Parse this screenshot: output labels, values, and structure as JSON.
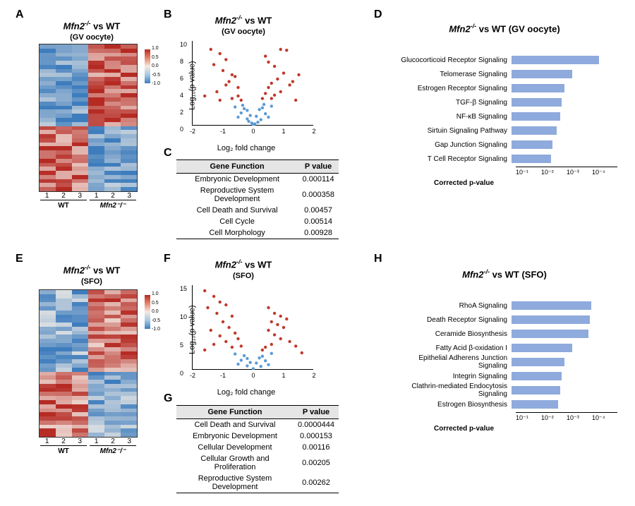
{
  "panels": {
    "A": {
      "label": "A",
      "title_html": "Mfn2",
      "sup": "-/-",
      "vs": " vs WT",
      "sub": "(GV oocyte)"
    },
    "B": {
      "label": "B",
      "title_html": "Mfn2",
      "sup": "-/-",
      "vs": " vs WT",
      "sub": "(GV oocyte)"
    },
    "C": {
      "label": "C"
    },
    "D": {
      "label": "D",
      "title_html": "Mfn2",
      "sup": "-/-",
      "vs": " vs WT (GV oocyte)"
    },
    "E": {
      "label": "E",
      "title_html": "Mfn2",
      "sup": "-/-",
      "vs": " vs WT",
      "sub": "(SFO)"
    },
    "F": {
      "label": "F",
      "title_html": "Mfn2",
      "sup": "-/-",
      "vs": " vs WT",
      "sub": "(SFO)"
    },
    "G": {
      "label": "G"
    },
    "H": {
      "label": "H",
      "title_html": "Mfn2",
      "sup": "-/-",
      "vs": " vs WT (SFO)"
    }
  },
  "heatmap": {
    "columns": [
      "1",
      "2",
      "3",
      "1",
      "2",
      "3"
    ],
    "groups": [
      "WT",
      "Mfn2⁻/⁻"
    ],
    "legend_ticks": [
      "1.0",
      "0.5",
      "0.0",
      "-0.5",
      "-1.0"
    ],
    "legend_gradient": [
      "#b52b24",
      "#e6836b",
      "#f6e8df",
      "#a6c9e2",
      "#3e7dbd"
    ],
    "low_color": "#3e7dbd",
    "mid_color": "#f5efe8",
    "high_color": "#b52b24",
    "rows": 36
  },
  "volcano": {
    "B": {
      "xlim": [
        -2,
        2
      ],
      "xticks": [
        -2,
        -1,
        0,
        1,
        2
      ],
      "ylim": [
        0,
        10
      ],
      "yticks": [
        0,
        2,
        4,
        6,
        8,
        10
      ],
      "xlabel": "Log₂ fold change",
      "ylabel": "-Log₁₀(p value)",
      "sig_color": "#c0392b",
      "nonsig_color": "#5b9bd5",
      "points_sig": [
        [
          -1.4,
          9
        ],
        [
          -1.1,
          8.5
        ],
        [
          -1.3,
          7.2
        ],
        [
          -0.9,
          7.8
        ],
        [
          -1.0,
          6.5
        ],
        [
          -0.7,
          6.0
        ],
        [
          -0.8,
          5.2
        ],
        [
          -0.6,
          5.8
        ],
        [
          -0.5,
          4.5
        ],
        [
          -1.2,
          4.0
        ],
        [
          -0.9,
          4.8
        ],
        [
          -1.6,
          3.5
        ],
        [
          -0.7,
          3.2
        ],
        [
          -1.1,
          3.0
        ],
        [
          -0.5,
          3.5
        ],
        [
          -0.4,
          3.0
        ],
        [
          0.4,
          8.2
        ],
        [
          0.5,
          7.5
        ],
        [
          0.7,
          7.0
        ],
        [
          0.9,
          9.0
        ],
        [
          1.1,
          8.9
        ],
        [
          1.0,
          6.2
        ],
        [
          0.8,
          5.5
        ],
        [
          0.6,
          5.0
        ],
        [
          0.5,
          4.5
        ],
        [
          1.2,
          4.8
        ],
        [
          0.9,
          4.0
        ],
        [
          0.7,
          3.6
        ],
        [
          0.6,
          3.2
        ],
        [
          1.4,
          3.0
        ],
        [
          0.4,
          3.8
        ],
        [
          0.3,
          3.2
        ],
        [
          1.5,
          6.0
        ],
        [
          1.3,
          5.2
        ]
      ],
      "points_nonsig": [
        [
          -0.3,
          2.0
        ],
        [
          -0.2,
          1.8
        ],
        [
          -0.4,
          1.5
        ],
        [
          -0.1,
          1.2
        ],
        [
          -0.5,
          1.0
        ],
        [
          -0.2,
          0.8
        ],
        [
          -0.15,
          0.5
        ],
        [
          -0.05,
          0.3
        ],
        [
          0.3,
          2.1
        ],
        [
          0.2,
          1.9
        ],
        [
          0.4,
          1.4
        ],
        [
          0.1,
          1.1
        ],
        [
          0.5,
          1.0
        ],
        [
          0.25,
          0.7
        ],
        [
          0.15,
          0.4
        ],
        [
          0.05,
          0.2
        ],
        [
          0,
          0.1
        ],
        [
          -0.6,
          2.2
        ],
        [
          0.6,
          2.3
        ],
        [
          -0.35,
          2.4
        ],
        [
          0.35,
          2.5
        ]
      ]
    },
    "F": {
      "xlim": [
        -2,
        2
      ],
      "xticks": [
        -2,
        -1,
        0,
        1,
        2
      ],
      "ylim": [
        0,
        15
      ],
      "yticks": [
        0,
        5,
        10,
        15
      ],
      "xlabel": "Log₂ fold change",
      "ylabel": "-Log₁₀(p value)",
      "sig_color": "#c0392b",
      "nonsig_color": "#5b9bd5",
      "points_sig": [
        [
          -1.6,
          14
        ],
        [
          -1.3,
          13
        ],
        [
          -1.1,
          12
        ],
        [
          -1.5,
          11
        ],
        [
          -0.9,
          11.5
        ],
        [
          -1.2,
          10
        ],
        [
          -0.7,
          9.5
        ],
        [
          -1.0,
          8.5
        ],
        [
          -0.8,
          7.5
        ],
        [
          -1.4,
          7
        ],
        [
          -0.6,
          6.5
        ],
        [
          -1.1,
          6
        ],
        [
          -0.9,
          5
        ],
        [
          -0.5,
          5.5
        ],
        [
          -1.3,
          4.5
        ],
        [
          -0.7,
          4
        ],
        [
          -0.4,
          4.2
        ],
        [
          -1.6,
          3.5
        ],
        [
          0.5,
          11
        ],
        [
          0.7,
          10
        ],
        [
          0.9,
          9.5
        ],
        [
          1.1,
          9
        ],
        [
          0.6,
          8.5
        ],
        [
          0.8,
          8
        ],
        [
          1.0,
          7.5
        ],
        [
          0.5,
          7
        ],
        [
          0.7,
          6.2
        ],
        [
          0.9,
          5.5
        ],
        [
          1.2,
          5
        ],
        [
          0.6,
          4.5
        ],
        [
          0.4,
          4
        ],
        [
          1.4,
          4.2
        ],
        [
          0.3,
          3.5
        ],
        [
          1.6,
          3.0
        ]
      ],
      "points_nonsig": [
        [
          -0.3,
          2.5
        ],
        [
          -0.2,
          2.0
        ],
        [
          -0.4,
          1.7
        ],
        [
          -0.1,
          1.3
        ],
        [
          -0.5,
          1.0
        ],
        [
          -0.2,
          0.7
        ],
        [
          0.3,
          2.4
        ],
        [
          0.2,
          2.1
        ],
        [
          0.4,
          1.6
        ],
        [
          0.1,
          1.2
        ],
        [
          0.5,
          0.9
        ],
        [
          0.25,
          0.6
        ],
        [
          0,
          0.2
        ],
        [
          -0.6,
          2.8
        ],
        [
          0.6,
          2.9
        ]
      ]
    }
  },
  "tables": {
    "C": {
      "headers": [
        "Gene Function",
        "P value"
      ],
      "rows": [
        [
          "Embryonic Development",
          "0.000114"
        ],
        [
          "Reproductive System Development",
          "0.000358"
        ],
        [
          "Cell Death and Survival",
          "0.00457"
        ],
        [
          "Cell Cycle",
          "0.00514"
        ],
        [
          "Cell Morphology",
          "0.00928"
        ]
      ]
    },
    "G": {
      "headers": [
        "Gene Function",
        "P value"
      ],
      "rows": [
        [
          "Cell Death and Survival",
          "0.0000444"
        ],
        [
          "Embryonic Development",
          "0.000153"
        ],
        [
          "Cellular Development",
          "0.00116"
        ],
        [
          "Cellular Growth and Proliferation",
          "0.00205"
        ],
        [
          "Reproductive System Development",
          "0.00262"
        ]
      ]
    }
  },
  "pathways": {
    "D": {
      "bar_color": "#8faadc",
      "axis_ticks": [
        "10⁻¹",
        "10⁻²",
        "10⁻³",
        "10⁻⁴"
      ],
      "xlabel": "Corrected p-value",
      "max": 4,
      "items": [
        {
          "label": "Glucocorticoid Receptor Signaling",
          "val": 3.3
        },
        {
          "label": "Telomerase Signaling",
          "val": 2.3
        },
        {
          "label": "Estrogen Receptor Signaling",
          "val": 2.0
        },
        {
          "label": "TGF-β Signaling",
          "val": 1.9
        },
        {
          "label": "NF-κB Signaling",
          "val": 1.85
        },
        {
          "label": "Sirtuin Signaling Pathway",
          "val": 1.7
        },
        {
          "label": "Gap Junction Signaling",
          "val": 1.55
        },
        {
          "label": "T Cell Receptor Signaling",
          "val": 1.5
        }
      ]
    },
    "H": {
      "bar_color": "#8faadc",
      "axis_ticks": [
        "10⁻¹",
        "10⁻²",
        "10⁻³",
        "10⁻⁴"
      ],
      "xlabel": "Corrected p-value",
      "max": 4,
      "items": [
        {
          "label": "RhoA Signaling",
          "val": 3.0
        },
        {
          "label": "Death Receptor Signaling",
          "val": 2.95
        },
        {
          "label": "Ceramide Biosynthesis",
          "val": 2.9
        },
        {
          "label": "Fatty Acid β-oxidation I",
          "val": 2.3
        },
        {
          "label": "Epithelial Adherens Junction Signaling",
          "val": 2.0
        },
        {
          "label": "Integrin Signaling",
          "val": 1.9
        },
        {
          "label": "Clathrin-mediated Endocytosis Signaling",
          "val": 1.85
        },
        {
          "label": "Estrogen Biosynthesis",
          "val": 1.75
        }
      ]
    }
  }
}
